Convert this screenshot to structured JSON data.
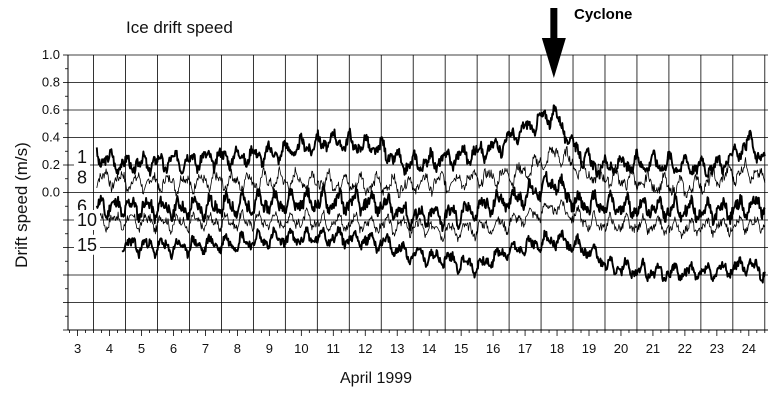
{
  "chart_data": {
    "type": "line",
    "title": "Ice drift speed",
    "annotation": "Cyclone",
    "annotation_x": 17.9,
    "xlabel": "April 1999",
    "ylabel": "Drift speed (m/s)",
    "x_ticks": [
      "3",
      "4",
      "5",
      "6",
      "7",
      "8",
      "9",
      "10",
      "11",
      "12",
      "13",
      "14",
      "15",
      "16",
      "17",
      "18",
      "19",
      "20",
      "21",
      "22",
      "23",
      "24"
    ],
    "xlim": [
      2.7,
      24.6
    ],
    "y_tick_labels": [
      "1.0",
      "0.8",
      "0.6",
      "0.4",
      "0.2",
      "0.0"
    ],
    "y_tick_values": [
      1.0,
      0.8,
      0.6,
      0.4,
      0.2,
      0.0
    ],
    "ylim": [
      -1.0,
      1.0
    ],
    "grid": true,
    "series": [
      {
        "name": "1",
        "width": 1.9,
        "base": 0.26,
        "amp": 0.08,
        "seed": 3,
        "trend": [
          [
            3.6,
            0.0
          ],
          [
            4.5,
            -0.06
          ],
          [
            9,
            0.02
          ],
          [
            11,
            0.12
          ],
          [
            12.5,
            0.06
          ],
          [
            13.2,
            -0.06
          ],
          [
            14.5,
            -0.02
          ],
          [
            16,
            0.06
          ],
          [
            17,
            0.2
          ],
          [
            17.9,
            0.32
          ],
          [
            18.5,
            0.08
          ],
          [
            19.2,
            -0.08
          ],
          [
            21,
            -0.04
          ],
          [
            23,
            -0.08
          ],
          [
            24,
            0.1
          ],
          [
            24.5,
            -0.02
          ]
        ]
      },
      {
        "name": "8",
        "width": 0.8,
        "base": 0.07,
        "amp": 0.08,
        "seed": 7,
        "trend": [
          [
            3.6,
            0.04
          ],
          [
            5,
            0.0
          ],
          [
            10,
            0.02
          ],
          [
            13,
            -0.02
          ],
          [
            16,
            0.04
          ],
          [
            17,
            0.08
          ],
          [
            18,
            0.22
          ],
          [
            19,
            0.06
          ],
          [
            22,
            -0.04
          ],
          [
            24,
            0.1
          ],
          [
            24.5,
            0.0
          ]
        ]
      },
      {
        "name": "6",
        "width": 1.9,
        "base": -0.1,
        "amp": 0.09,
        "seed": 11,
        "trend": [
          [
            3.6,
            0.0
          ],
          [
            6,
            -0.02
          ],
          [
            10,
            0.04
          ],
          [
            12.5,
            0.02
          ],
          [
            13.5,
            -0.08
          ],
          [
            15,
            -0.06
          ],
          [
            16,
            0.02
          ],
          [
            17,
            0.08
          ],
          [
            17.9,
            0.18
          ],
          [
            18.6,
            0.02
          ],
          [
            20,
            0.0
          ],
          [
            23,
            -0.04
          ],
          [
            24.5,
            0.02
          ]
        ]
      },
      {
        "name": "10",
        "width": 0.8,
        "base": -0.22,
        "amp": 0.07,
        "seed": 17,
        "trend": [
          [
            3.6,
            0.02
          ],
          [
            6,
            0.0
          ],
          [
            10,
            0.02
          ],
          [
            13,
            -0.02
          ],
          [
            15,
            -0.06
          ],
          [
            16.5,
            0.0
          ],
          [
            18,
            0.12
          ],
          [
            19,
            0.0
          ],
          [
            22,
            -0.04
          ],
          [
            24.5,
            0.0
          ]
        ]
      },
      {
        "name": "15",
        "width": 1.9,
        "base": -0.4,
        "amp": 0.07,
        "seed": 23,
        "trend": [
          [
            4.4,
            0.02
          ],
          [
            6,
            0.0
          ],
          [
            9,
            0.06
          ],
          [
            11,
            0.08
          ],
          [
            12.5,
            0.04
          ],
          [
            13.3,
            -0.04
          ],
          [
            14.5,
            -0.08
          ],
          [
            15.5,
            -0.14
          ],
          [
            16.5,
            -0.02
          ],
          [
            18,
            0.06
          ],
          [
            19.2,
            -0.04
          ],
          [
            19.6,
            -0.14
          ],
          [
            21,
            -0.18
          ],
          [
            22,
            -0.18
          ],
          [
            23,
            -0.18
          ],
          [
            24,
            -0.12
          ],
          [
            24.5,
            -0.18
          ]
        ]
      }
    ]
  }
}
